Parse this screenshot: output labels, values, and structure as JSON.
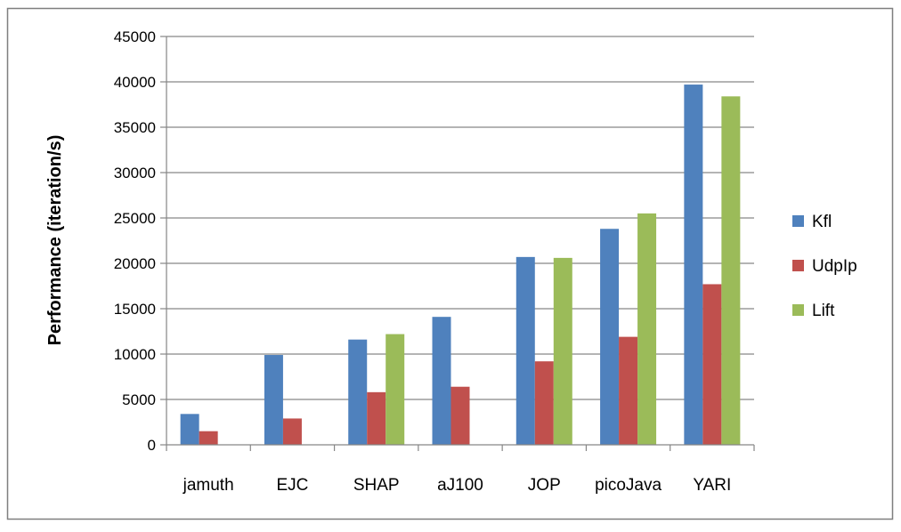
{
  "chart_data": {
    "type": "bar",
    "title": "",
    "xlabel": "",
    "ylabel": "Performance (iteration/s)",
    "ylim": [
      0,
      45000
    ],
    "yticks": [
      0,
      5000,
      10000,
      15000,
      20000,
      25000,
      30000,
      35000,
      40000,
      45000
    ],
    "grid": true,
    "legend_position": "right",
    "categories": [
      "jamuth",
      "EJC",
      "SHAP",
      "aJ100",
      "JOP",
      "picoJava",
      "YARI"
    ],
    "series": [
      {
        "name": "Kfl",
        "color": "#4F81BD",
        "values": [
          3400,
          9900,
          11600,
          14100,
          20700,
          23800,
          39700
        ]
      },
      {
        "name": "UdpIp",
        "color": "#C0504D",
        "values": [
          1500,
          2900,
          5800,
          6400,
          9200,
          11900,
          17700
        ]
      },
      {
        "name": "Lift",
        "color": "#9BBB59",
        "values": [
          0,
          0,
          12200,
          0,
          20600,
          25500,
          38400
        ]
      }
    ]
  }
}
